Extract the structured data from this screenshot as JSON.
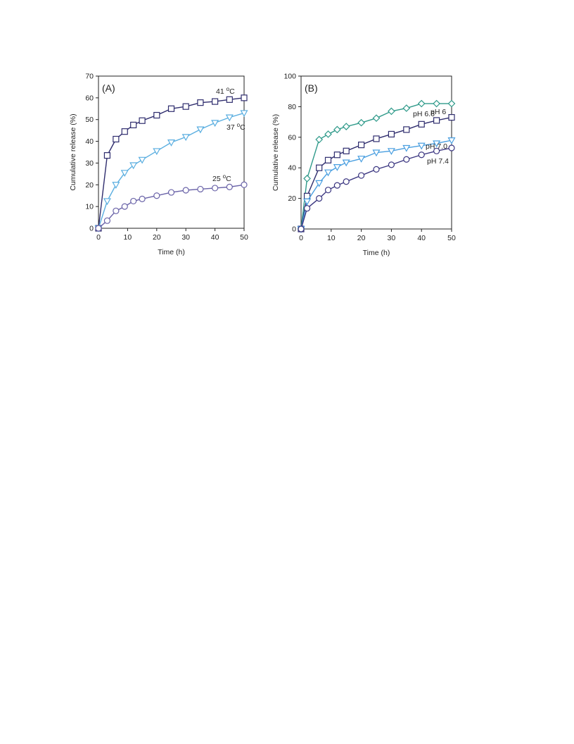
{
  "chart_data": [
    {
      "type": "line",
      "panel_label": "(A)",
      "xlabel": "Time (h)",
      "ylabel": "Cumulative release (%)",
      "xlim": [
        0,
        50
      ],
      "ylim": [
        0,
        70
      ],
      "xticks": [
        0,
        10,
        20,
        30,
        40,
        50
      ],
      "yticks": [
        0,
        10,
        20,
        30,
        40,
        50,
        60,
        70
      ],
      "grid": false,
      "legend": "none",
      "series": [
        {
          "label_parts": [
            "41 ",
            "o",
            "C"
          ],
          "marker": "square",
          "color": "#2f2d6e",
          "x": [
            0,
            3,
            6,
            9,
            12,
            15,
            20,
            25,
            30,
            35,
            40,
            45,
            50
          ],
          "y": [
            0,
            33.5,
            41,
            44.5,
            47.5,
            49.5,
            52,
            55,
            56,
            57.8,
            58.3,
            59.2,
            60
          ]
        },
        {
          "label_parts": [
            "37 ",
            "o",
            "C"
          ],
          "marker": "triangle-down",
          "color": "#5aaee0",
          "x": [
            0,
            3,
            6,
            9,
            12,
            15,
            20,
            25,
            30,
            35,
            40,
            45,
            50
          ],
          "y": [
            0,
            12.5,
            20,
            25.5,
            29,
            31.5,
            35.5,
            39.5,
            42,
            45.5,
            48.5,
            51,
            53
          ]
        },
        {
          "label_parts": [
            "25 ",
            "o",
            "C"
          ],
          "marker": "circle",
          "color": "#6a63a8",
          "x": [
            0,
            3,
            6,
            9,
            12,
            15,
            20,
            25,
            30,
            35,
            40,
            45,
            50
          ],
          "y": [
            0,
            3.5,
            8,
            10,
            12.5,
            13.5,
            15,
            16.5,
            17.5,
            18,
            18.5,
            19,
            20
          ]
        }
      ]
    },
    {
      "type": "line",
      "panel_label": "(B)",
      "xlabel": "Time (h)",
      "ylabel": "Cumulative release (%)",
      "xlim": [
        0,
        50
      ],
      "ylim": [
        0,
        100
      ],
      "xticks": [
        0,
        10,
        20,
        30,
        40,
        50
      ],
      "yticks": [
        0,
        20,
        40,
        60,
        80,
        100
      ],
      "grid": false,
      "legend": "none",
      "series": [
        {
          "label_parts": [
            "pH 6"
          ],
          "marker": "diamond",
          "color": "#2f9a8a",
          "x": [
            0,
            2,
            6,
            9,
            12,
            15,
            20,
            25,
            30,
            35,
            40,
            45,
            50
          ],
          "y": [
            0,
            33,
            58.5,
            62,
            65,
            67,
            69.5,
            72.5,
            77,
            79,
            82,
            82,
            82
          ]
        },
        {
          "label_parts": [
            "pH 6.6"
          ],
          "marker": "square",
          "color": "#2f2d6e",
          "x": [
            0,
            2,
            6,
            9,
            12,
            15,
            20,
            25,
            30,
            35,
            40,
            45,
            50
          ],
          "y": [
            0,
            21.5,
            40,
            45,
            48.5,
            51,
            55,
            59,
            62,
            65,
            68.5,
            71,
            73
          ]
        },
        {
          "label_parts": [
            "pH 7.0"
          ],
          "marker": "triangle-down",
          "color": "#4a9fe0",
          "x": [
            0,
            2,
            6,
            9,
            12,
            15,
            20,
            25,
            30,
            35,
            40,
            45,
            50
          ],
          "y": [
            0,
            18,
            30,
            37,
            40.5,
            43.5,
            46,
            50,
            51,
            53,
            54.5,
            56,
            58
          ]
        },
        {
          "label_parts": [
            "pH 7.4"
          ],
          "marker": "circle",
          "color": "#3a3580",
          "x": [
            0,
            2,
            6,
            9,
            12,
            15,
            20,
            25,
            30,
            35,
            40,
            45,
            50
          ],
          "y": [
            0,
            13.5,
            20,
            25.5,
            28.5,
            31,
            35,
            39,
            42,
            45.5,
            48.5,
            51,
            53
          ]
        }
      ]
    }
  ]
}
